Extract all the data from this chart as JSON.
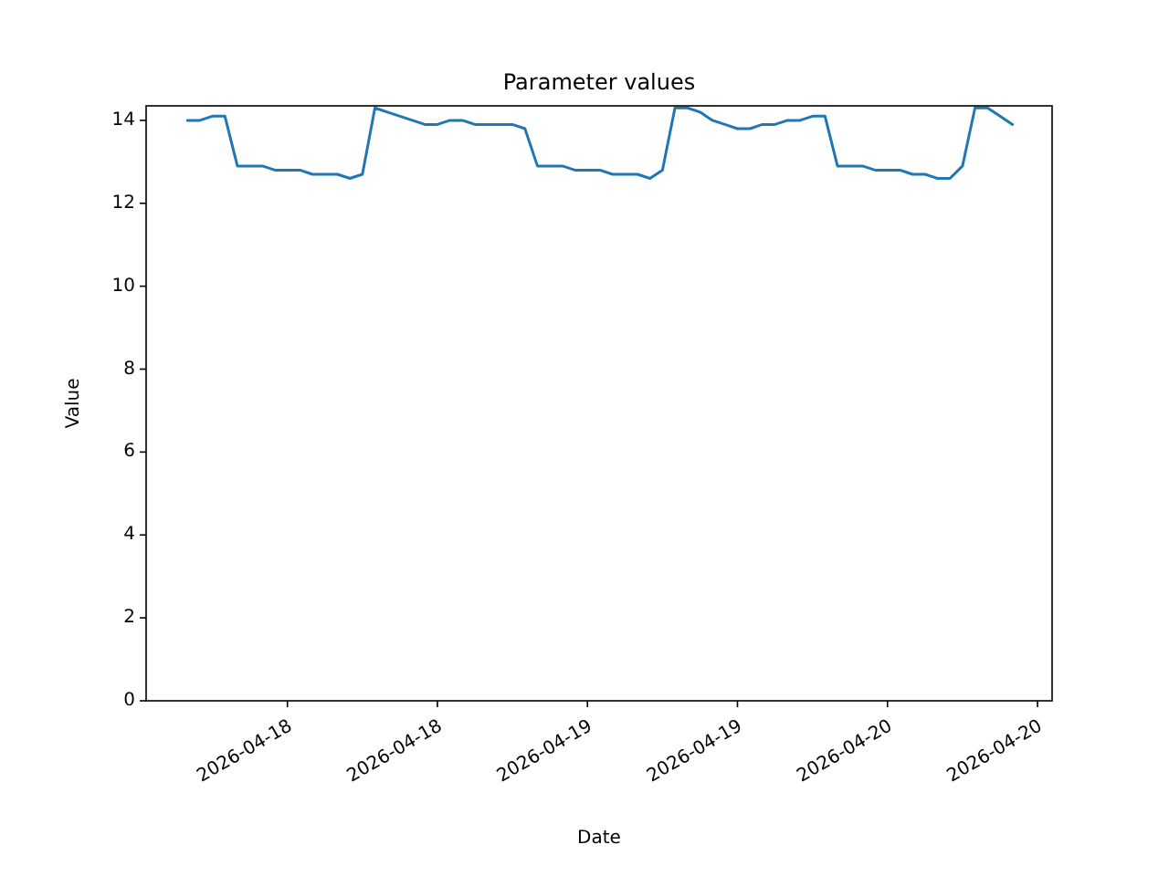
{
  "chart_data": {
    "type": "line",
    "title": "Parameter values",
    "xlabel": "Date",
    "ylabel": "Value",
    "x": [
      "2026-04-17T16:00",
      "2026-04-17T17:00",
      "2026-04-17T18:00",
      "2026-04-17T19:00",
      "2026-04-17T20:00",
      "2026-04-17T21:00",
      "2026-04-17T22:00",
      "2026-04-17T23:00",
      "2026-04-18T00:00",
      "2026-04-18T01:00",
      "2026-04-18T02:00",
      "2026-04-18T03:00",
      "2026-04-18T04:00",
      "2026-04-18T05:00",
      "2026-04-18T06:00",
      "2026-04-18T07:00",
      "2026-04-18T08:00",
      "2026-04-18T09:00",
      "2026-04-18T10:00",
      "2026-04-18T11:00",
      "2026-04-18T12:00",
      "2026-04-18T13:00",
      "2026-04-18T14:00",
      "2026-04-18T15:00",
      "2026-04-18T16:00",
      "2026-04-18T17:00",
      "2026-04-18T18:00",
      "2026-04-18T19:00",
      "2026-04-18T20:00",
      "2026-04-18T21:00",
      "2026-04-18T22:00",
      "2026-04-18T23:00",
      "2026-04-19T00:00",
      "2026-04-19T01:00",
      "2026-04-19T02:00",
      "2026-04-19T03:00",
      "2026-04-19T04:00",
      "2026-04-19T05:00",
      "2026-04-19T06:00",
      "2026-04-19T07:00",
      "2026-04-19T08:00",
      "2026-04-19T09:00",
      "2026-04-19T10:00",
      "2026-04-19T11:00",
      "2026-04-19T12:00",
      "2026-04-19T13:00",
      "2026-04-19T14:00",
      "2026-04-19T15:00",
      "2026-04-19T16:00",
      "2026-04-19T17:00",
      "2026-04-19T18:00",
      "2026-04-19T19:00",
      "2026-04-19T20:00",
      "2026-04-19T21:00",
      "2026-04-19T22:00",
      "2026-04-19T23:00",
      "2026-04-20T00:00",
      "2026-04-20T01:00",
      "2026-04-20T02:00",
      "2026-04-20T03:00",
      "2026-04-20T04:00",
      "2026-04-20T05:00",
      "2026-04-20T06:00",
      "2026-04-20T07:00",
      "2026-04-20T08:00",
      "2026-04-20T09:00",
      "2026-04-20T10:00"
    ],
    "series": [
      {
        "color": "#1f77b4",
        "values": [
          14.0,
          14.0,
          14.1,
          14.1,
          12.9,
          12.9,
          12.9,
          12.8,
          12.8,
          12.8,
          12.7,
          12.7,
          12.7,
          12.6,
          12.7,
          14.3,
          14.2,
          14.1,
          14.0,
          13.9,
          13.9,
          14.0,
          14.0,
          13.9,
          13.9,
          13.9,
          13.9,
          13.8,
          12.9,
          12.9,
          12.9,
          12.8,
          12.8,
          12.8,
          12.7,
          12.7,
          12.7,
          12.6,
          12.8,
          14.3,
          14.3,
          14.2,
          14.0,
          13.9,
          13.8,
          13.8,
          13.9,
          13.9,
          14.0,
          14.0,
          14.1,
          14.1,
          12.9,
          12.9,
          12.9,
          12.8,
          12.8,
          12.8,
          12.7,
          12.7,
          12.6,
          12.6,
          12.9,
          14.3,
          14.3,
          14.1,
          13.9
        ]
      }
    ],
    "xlim": [
      "2026-04-17T12:42",
      "2026-04-20T13:10"
    ],
    "xticks": [
      {
        "value": "2026-04-18T00:00",
        "label": "2026-04-18"
      },
      {
        "value": "2026-04-18T12:00",
        "label": "2026-04-18"
      },
      {
        "value": "2026-04-19T00:00",
        "label": "2026-04-19"
      },
      {
        "value": "2026-04-19T12:00",
        "label": "2026-04-19"
      },
      {
        "value": "2026-04-20T00:00",
        "label": "2026-04-20"
      },
      {
        "value": "2026-04-20T12:00",
        "label": "2026-04-20"
      }
    ],
    "ylim": [
      0,
      14.35
    ],
    "yticks": [
      0,
      2,
      4,
      6,
      8,
      10,
      12,
      14
    ],
    "grid": false,
    "marker": "none",
    "line_style": "solid"
  }
}
